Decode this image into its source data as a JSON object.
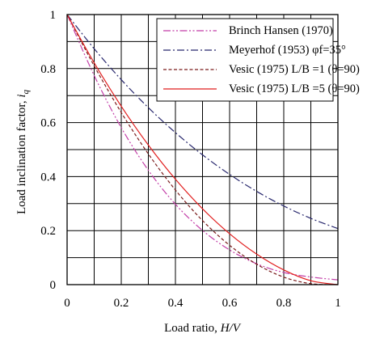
{
  "chart_data": {
    "type": "line",
    "xlabel": "Load ratio, H/V",
    "ylabel": "Load inclination factor, i_q",
    "xlim": [
      0,
      1
    ],
    "ylim": [
      0,
      1
    ],
    "xticks": [
      "0",
      "0.2",
      "0.4",
      "0.6",
      "0.8",
      "1"
    ],
    "yticks": [
      "0",
      "0.2",
      "0.4",
      "0.6",
      "0.8",
      "1"
    ],
    "grid": true,
    "legend_position": "top-right",
    "series": [
      {
        "name": "Brinch Hansen (1970)",
        "color": "#c33fa8",
        "dash": "dash-dot-dot",
        "points": [
          [
            0,
            1
          ],
          [
            0.1,
            0.7744
          ],
          [
            0.2,
            0.5814
          ],
          [
            0.3,
            0.4234
          ],
          [
            0.4,
            0.2976
          ],
          [
            0.5,
            0.2007
          ],
          [
            0.6,
            0.1286
          ],
          [
            0.7,
            0.0772
          ],
          [
            0.8,
            0.0449
          ],
          [
            0.9,
            0.0281
          ],
          [
            1,
            0.0175
          ]
        ]
      },
      {
        "name": "Meyerhof (1953) φf=35°",
        "color": "#28286e",
        "dash": "dash-dot",
        "points": [
          [
            0,
            1
          ],
          [
            0.1,
            0.8735
          ],
          [
            0.2,
            0.7587
          ],
          [
            0.3,
            0.6553
          ],
          [
            0.4,
            0.5628
          ],
          [
            0.5,
            0.4805
          ],
          [
            0.6,
            0.4082
          ],
          [
            0.7,
            0.3452
          ],
          [
            0.8,
            0.2911
          ],
          [
            0.9,
            0.2453
          ],
          [
            1,
            0.2074
          ]
        ]
      },
      {
        "name": "Vesic (1975) L/B =1 (θ=90)",
        "color": "#7a1a1a",
        "dash": "dashed",
        "points": [
          [
            0,
            1
          ],
          [
            0.1,
            0.8099
          ],
          [
            0.2,
            0.6373
          ],
          [
            0.3,
            0.484
          ],
          [
            0.4,
            0.3503
          ],
          [
            0.5,
            0.2373
          ],
          [
            0.6,
            0.1457
          ],
          [
            0.7,
            0.0756
          ],
          [
            0.8,
            0.0278
          ],
          [
            0.9,
            0.0036
          ],
          [
            1,
            0
          ]
        ]
      },
      {
        "name": "Vesic (1975) L/B =5 (θ=90)",
        "color": "#e11e1e",
        "dash": "solid",
        "points": [
          [
            0,
            1
          ],
          [
            0.1,
            0.8214
          ],
          [
            0.2,
            0.6604
          ],
          [
            0.3,
            0.5167
          ],
          [
            0.4,
            0.3902
          ],
          [
            0.5,
            0.2809
          ],
          [
            0.6,
            0.1885
          ],
          [
            0.7,
            0.113
          ],
          [
            0.8,
            0.0544
          ],
          [
            0.9,
            0.0144
          ],
          [
            1,
            0
          ]
        ]
      }
    ]
  }
}
